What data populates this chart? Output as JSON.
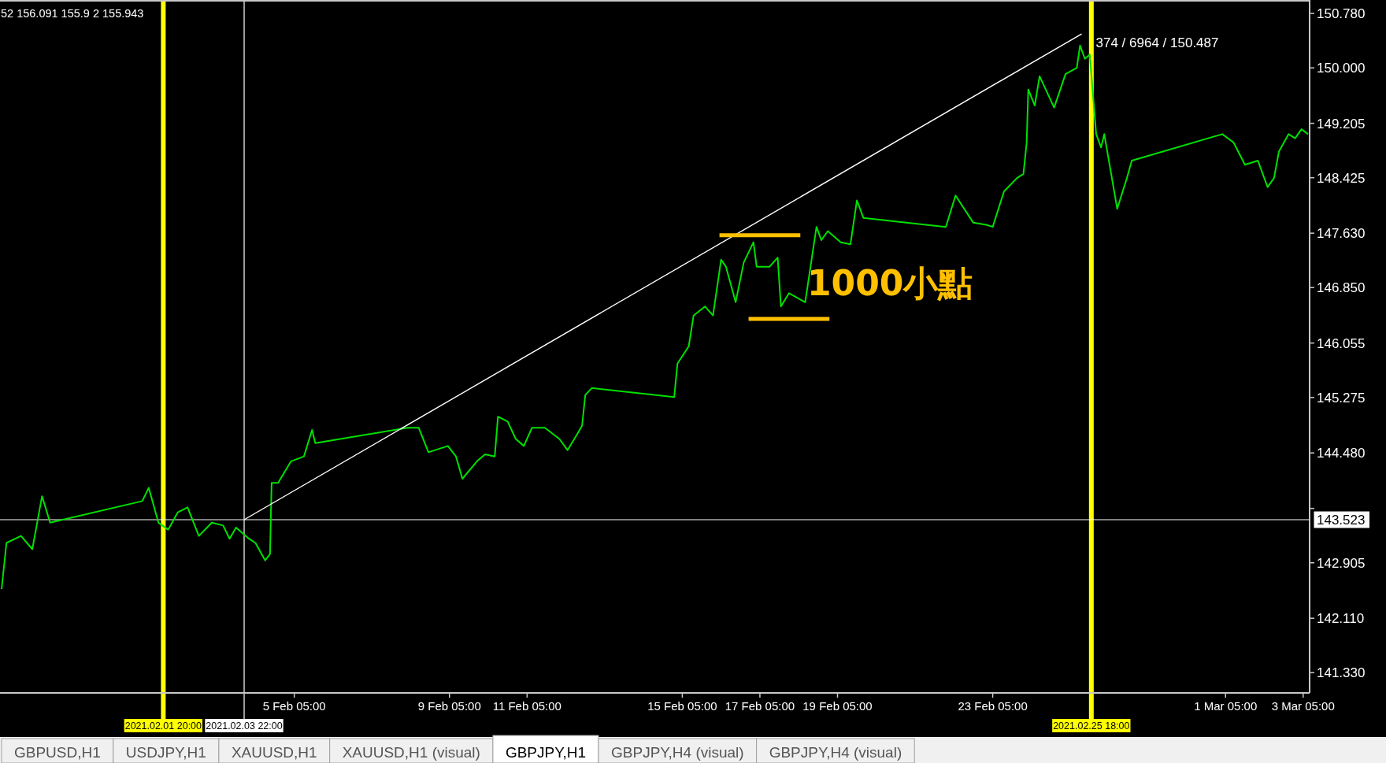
{
  "chart_data": {
    "type": "line",
    "title": "GBPJPY,H1",
    "xlim": [
      "2021-01-28T15:00",
      "2021-03-03T09:00"
    ],
    "ylim": [
      141.04,
      150.95
    ],
    "xticks": [
      {
        "value": "2021-02-05T05:00",
        "label": "5 Feb 05:00"
      },
      {
        "value": "2021-02-09T05:00",
        "label": "9 Feb 05:00"
      },
      {
        "value": "2021-02-11T05:00",
        "label": "11 Feb 05:00"
      },
      {
        "value": "2021-02-15T05:00",
        "label": "15 Feb 05:00"
      },
      {
        "value": "2021-02-17T05:00",
        "label": "17 Feb 05:00"
      },
      {
        "value": "2021-02-19T05:00",
        "label": "19 Feb 05:00"
      },
      {
        "value": "2021-02-23T05:00",
        "label": "23 Feb 05:00"
      },
      {
        "value": "2021-03-01T05:00",
        "label": "1 Mar 05:00"
      },
      {
        "value": "2021-03-03T05:00",
        "label": "3 Mar 05:00"
      }
    ],
    "yticks": [
      {
        "value": 141.33,
        "label": "141.330"
      },
      {
        "value": 142.11,
        "label": "142.110"
      },
      {
        "value": 142.905,
        "label": "142.905"
      },
      {
        "value": 143.685,
        "label": null
      },
      {
        "value": 144.48,
        "label": "144.480"
      },
      {
        "value": 145.275,
        "label": "145.275"
      },
      {
        "value": 146.055,
        "label": "146.055"
      },
      {
        "value": 146.85,
        "label": "146.850"
      },
      {
        "value": 147.63,
        "label": "147.630"
      },
      {
        "value": 148.425,
        "label": "148.425"
      },
      {
        "value": 149.205,
        "label": "149.205"
      },
      {
        "value": 150,
        "label": "150.000"
      },
      {
        "value": 150.78,
        "label": "150.780"
      }
    ],
    "series": [
      {
        "color": "#00e000",
        "x": [
          "2021-01-28T16:00",
          "2021-01-28T19:00",
          "2021-01-29T04:00",
          "2021-01-29T11:00",
          "2021-01-29T17:00",
          "2021-01-29T22:00",
          "2021-02-01T07:00",
          "2021-02-01T11:00",
          "2021-02-01T17:00",
          "2021-02-01T23:00",
          "2021-02-02T05:00",
          "2021-02-02T11:00",
          "2021-02-02T18:00",
          "2021-02-03T02:00",
          "2021-02-03T09:00",
          "2021-02-03T13:00",
          "2021-02-03T17:00",
          "2021-02-04T01:00",
          "2021-02-04T05:00",
          "2021-02-04T11:00",
          "2021-02-04T14:00",
          "2021-02-04T15:00",
          "2021-02-04T19:00",
          "2021-02-05T03:00",
          "2021-02-05T11:00",
          "2021-02-05T16:00",
          "2021-02-05T18:00",
          "2021-02-08T03:00",
          "2021-02-08T10:00",
          "2021-02-08T16:00",
          "2021-02-09T04:00",
          "2021-02-09T09:00",
          "2021-02-09T13:00",
          "2021-02-09T22:00",
          "2021-02-10T03:00",
          "2021-02-10T09:00",
          "2021-02-10T11:00",
          "2021-02-10T17:00",
          "2021-02-10T22:00",
          "2021-02-11T03:00",
          "2021-02-11T08:00",
          "2021-02-11T16:00",
          "2021-02-12T01:00",
          "2021-02-12T06:00",
          "2021-02-12T11:00",
          "2021-02-12T15:00",
          "2021-02-12T17:00",
          "2021-02-12T21:00",
          "2021-02-15T00:00",
          "2021-02-15T02:00",
          "2021-02-15T09:00",
          "2021-02-15T12:00",
          "2021-02-15T19:00",
          "2021-02-16T00:00",
          "2021-02-16T05:00",
          "2021-02-16T08:00",
          "2021-02-16T14:00",
          "2021-02-16T19:00",
          "2021-02-17T01:00",
          "2021-02-17T03:00",
          "2021-02-17T11:00",
          "2021-02-17T16:00",
          "2021-02-17T18:00",
          "2021-02-17T23:00",
          "2021-02-18T09:00",
          "2021-02-18T16:00",
          "2021-02-18T19:00",
          "2021-02-18T23:00",
          "2021-02-19T07:00",
          "2021-02-19T13:00",
          "2021-02-19T17:00",
          "2021-02-19T21:00",
          "2021-02-22T00:00",
          "2021-02-22T06:00",
          "2021-02-22T17:00",
          "2021-02-23T01:00",
          "2021-02-23T05:00",
          "2021-02-23T12:00",
          "2021-02-23T20:00",
          "2021-02-24T00:00",
          "2021-02-24T02:00",
          "2021-02-24T03:00",
          "2021-02-24T07:00",
          "2021-02-24T10:00",
          "2021-02-24T19:00",
          "2021-02-25T02:00",
          "2021-02-25T09:00",
          "2021-02-25T11:00",
          "2021-02-25T14:00",
          "2021-02-25T17:00",
          "2021-02-25T21:00",
          "2021-02-26T00:00",
          "2021-02-26T02:00",
          "2021-02-26T10:00",
          "2021-02-26T16:00",
          "2021-02-26T19:00",
          "2021-03-01T03:00",
          "2021-03-01T10:00",
          "2021-03-01T17:00",
          "2021-03-02T01:00",
          "2021-03-02T07:00",
          "2021-03-02T11:00",
          "2021-03-02T14:00",
          "2021-03-02T20:00",
          "2021-03-03T00:00",
          "2021-03-03T04:00",
          "2021-03-03T08:00"
        ],
        "values": [
          142.53,
          143.19,
          143.29,
          143.1,
          143.86,
          143.48,
          143.79,
          143.98,
          143.48,
          143.38,
          143.63,
          143.7,
          143.29,
          143.48,
          143.44,
          143.25,
          143.41,
          143.25,
          143.19,
          142.94,
          143.03,
          144.05,
          144.05,
          144.36,
          144.43,
          144.81,
          144.62,
          144.84,
          144.84,
          144.49,
          144.58,
          144.43,
          144.11,
          144.36,
          144.46,
          144.43,
          145.0,
          144.93,
          144.68,
          144.58,
          144.84,
          144.84,
          144.68,
          144.52,
          144.71,
          144.87,
          145.31,
          145.41,
          145.28,
          145.76,
          146.01,
          146.45,
          146.58,
          146.45,
          147.25,
          147.15,
          146.64,
          147.21,
          147.5,
          147.15,
          147.15,
          147.28,
          146.58,
          146.77,
          146.64,
          147.72,
          147.53,
          147.66,
          147.5,
          147.47,
          148.1,
          147.85,
          147.72,
          148.17,
          147.78,
          147.75,
          147.72,
          148.23,
          148.42,
          148.48,
          148.93,
          149.69,
          149.46,
          149.88,
          149.43,
          149.91,
          150.0,
          150.32,
          150.13,
          150.19,
          149.05,
          148.86,
          149.05,
          147.98,
          148.42,
          148.67,
          149.05,
          148.93,
          148.61,
          148.67,
          148.29,
          148.42,
          148.8,
          149.05,
          148.99,
          149.12,
          149.05
        ]
      },
      {
        "color": "#ffffff",
        "x": [
          "2021-02-03T22:00",
          "2021-02-25T12:00"
        ],
        "values": [
          143.523,
          150.487
        ]
      },
      {
        "color": "#ffc000",
        "x": [
          "2021-02-16T04:00",
          "2021-02-18T06:00"
        ],
        "values": [
          147.6,
          147.6
        ]
      },
      {
        "color": "#ffc000",
        "x": [
          "2021-02-16T22:00",
          "2021-02-19T00:00"
        ],
        "values": [
          146.4,
          146.4
        ]
      }
    ],
    "ref_lines": [
      {
        "axis": "x",
        "value": "2021-02-01T20:00",
        "label": "2021.02.01 20:00",
        "color": "#ffff00"
      },
      {
        "axis": "x",
        "value": "2021-02-03T22:00",
        "label": "2021.02.03 22:00",
        "color": "#ffffff"
      },
      {
        "axis": "x",
        "value": "2021-02-25T18:00",
        "label": "2021.02.25 18:00",
        "color": "#ffff00"
      },
      {
        "axis": "y",
        "value": 143.523,
        "label": "143.523",
        "color": "#ffffff"
      }
    ],
    "annotations": [
      "52 156.091 155.9 2 155.943",
      {
        "text": "374 / 6964 / 150.487",
        "x": "2021-02-25T12:00",
        "y": 150.487
      },
      "1000小點",
      "GBPUSD,H1",
      "USDJPY,H1",
      "XAUUSD,H1",
      "XAUUSD,H1 (visual)",
      "GBPJPY,H4 (visual)",
      "GBPJPY,H4 (visual)"
    ]
  }
}
